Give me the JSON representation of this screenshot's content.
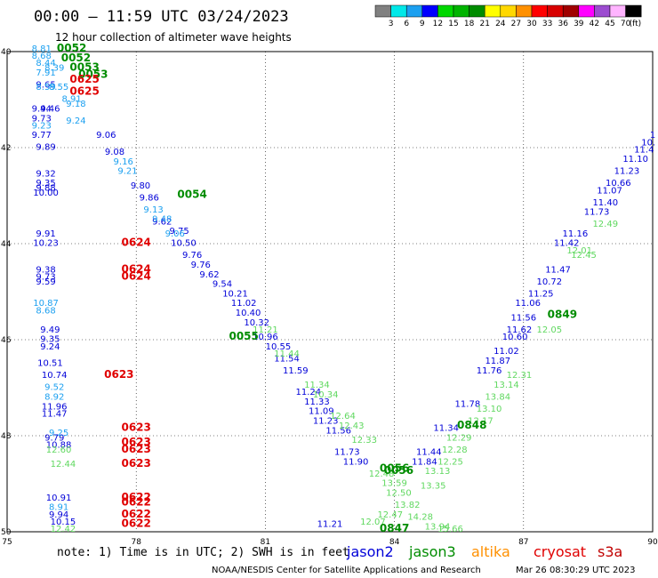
{
  "header": {
    "title": "00:00 – 11:59 UTC 03/24/2023",
    "subtitle": "12 hour collection of altimeter wave heights"
  },
  "colorbar": {
    "colors": [
      "#808080",
      "#00e8e8",
      "#1ca0f0",
      "#0000ff",
      "#00d800",
      "#00b400",
      "#008c00",
      "#ffff00",
      "#ffd800",
      "#ff9000",
      "#ff0000",
      "#d80000",
      "#a00000",
      "#ff00ff",
      "#9c4cd0",
      "#ffb4ff",
      "#000000"
    ],
    "labels": [
      "3",
      "6",
      "9",
      "12",
      "15",
      "18",
      "21",
      "24",
      "27",
      "30",
      "33",
      "36",
      "39",
      "42",
      "45",
      "70"
    ],
    "unit": "(ft)"
  },
  "note": "note: 1) Time is in UTC; 2) SWH is in feet",
  "satellites": [
    {
      "name": "jason2",
      "color": "#0000d8"
    },
    {
      "name": "jason3",
      "color": "#008c00"
    },
    {
      "name": "altika",
      "color": "#ff9000"
    },
    {
      "name": "cryosat",
      "color": "#e00000"
    },
    {
      "name": "s3a",
      "color": "#c00000"
    }
  ],
  "credit": "NOAA/NESDIS Center for Satellite Applications and Research",
  "timestamp": "Mar 26 08:30:29 UTC 2023",
  "chart_data": {
    "type": "scatter",
    "xlim": [
      75,
      90
    ],
    "ylim": [
      40,
      50
    ],
    "y_inverted": true,
    "xticks": [
      75,
      78,
      81,
      84,
      87,
      90
    ],
    "yticks": [
      40,
      42,
      44,
      46,
      48,
      50
    ],
    "series": [
      {
        "name": "jason2",
        "color": "#0000d8",
        "points": [
          {
            "x": 75.9,
            "y": 40.75,
            "label": "9.65"
          },
          {
            "x": 76.0,
            "y": 41.25,
            "label": "9.46"
          },
          {
            "x": 75.8,
            "y": 41.25,
            "label": "9.44"
          },
          {
            "x": 75.8,
            "y": 41.45,
            "label": "9.73"
          },
          {
            "x": 75.8,
            "y": 41.8,
            "label": "9.77"
          },
          {
            "x": 75.9,
            "y": 42.05,
            "label": "9.89"
          },
          {
            "x": 77.3,
            "y": 41.8,
            "label": "9.06"
          },
          {
            "x": 77.5,
            "y": 42.15,
            "label": "9.08"
          },
          {
            "x": 75.9,
            "y": 42.6,
            "label": "9.32"
          },
          {
            "x": 75.9,
            "y": 42.8,
            "label": "9.35"
          },
          {
            "x": 75.9,
            "y": 42.9,
            "label": "9.88"
          },
          {
            "x": 75.9,
            "y": 43.0,
            "label": "10.00"
          },
          {
            "x": 78.1,
            "y": 42.85,
            "label": "9.80"
          },
          {
            "x": 78.3,
            "y": 43.1,
            "label": "9.86"
          },
          {
            "x": 78.6,
            "y": 43.6,
            "label": "9.62"
          },
          {
            "x": 79.0,
            "y": 43.8,
            "label": "9.75"
          },
          {
            "x": 79.1,
            "y": 44.05,
            "label": "10.50"
          },
          {
            "x": 79.3,
            "y": 44.3,
            "label": "9.76"
          },
          {
            "x": 79.5,
            "y": 44.5,
            "label": "9.76"
          },
          {
            "x": 79.7,
            "y": 44.7,
            "label": "9.62"
          },
          {
            "x": 80.0,
            "y": 44.9,
            "label": "9.54"
          },
          {
            "x": 80.3,
            "y": 45.1,
            "label": "10.21"
          },
          {
            "x": 80.5,
            "y": 45.3,
            "label": "11.02"
          },
          {
            "x": 80.6,
            "y": 45.5,
            "label": "10.40"
          },
          {
            "x": 80.8,
            "y": 45.7,
            "label": "10.32"
          },
          {
            "x": 75.9,
            "y": 43.85,
            "label": "9.91"
          },
          {
            "x": 75.9,
            "y": 44.05,
            "label": "10.23"
          },
          {
            "x": 75.9,
            "y": 44.6,
            "label": "9.38"
          },
          {
            "x": 75.9,
            "y": 44.75,
            "label": "9.73"
          },
          {
            "x": 75.9,
            "y": 44.85,
            "label": "9.59"
          },
          {
            "x": 76.0,
            "y": 45.85,
            "label": "9.49"
          },
          {
            "x": 76.0,
            "y": 46.05,
            "label": "9.35"
          },
          {
            "x": 76.0,
            "y": 46.2,
            "label": "9.24"
          },
          {
            "x": 76.0,
            "y": 46.55,
            "label": "10.51"
          },
          {
            "x": 76.1,
            "y": 46.8,
            "label": "10.74"
          },
          {
            "x": 76.1,
            "y": 47.45,
            "label": "11.96"
          },
          {
            "x": 76.1,
            "y": 47.6,
            "label": "11.47"
          },
          {
            "x": 76.1,
            "y": 48.1,
            "label": "9.79"
          },
          {
            "x": 76.2,
            "y": 48.25,
            "label": "10.88"
          },
          {
            "x": 76.2,
            "y": 49.35,
            "label": "10.91"
          },
          {
            "x": 76.2,
            "y": 49.7,
            "label": "9.94"
          },
          {
            "x": 76.3,
            "y": 49.85,
            "label": "10.15"
          },
          {
            "x": 81.0,
            "y": 46.0,
            "label": "10.96"
          },
          {
            "x": 81.3,
            "y": 46.2,
            "label": "10.55"
          },
          {
            "x": 81.5,
            "y": 46.45,
            "label": "11.54"
          },
          {
            "x": 81.7,
            "y": 46.7,
            "label": "11.59"
          },
          {
            "x": 82.0,
            "y": 47.15,
            "label": "11.24"
          },
          {
            "x": 82.2,
            "y": 47.35,
            "label": "11.33"
          },
          {
            "x": 82.3,
            "y": 47.55,
            "label": "11.09"
          },
          {
            "x": 82.4,
            "y": 47.75,
            "label": "11.23"
          },
          {
            "x": 82.7,
            "y": 47.95,
            "label": "11.56"
          },
          {
            "x": 82.9,
            "y": 48.4,
            "label": "11.73"
          },
          {
            "x": 83.1,
            "y": 48.6,
            "label": "11.90"
          },
          {
            "x": 82.5,
            "y": 49.9,
            "label": "11.21"
          },
          {
            "x": 84.7,
            "y": 48.6,
            "label": "11.84"
          },
          {
            "x": 84.8,
            "y": 48.4,
            "label": "11.44"
          },
          {
            "x": 85.2,
            "y": 47.9,
            "label": "11.34"
          },
          {
            "x": 85.7,
            "y": 47.4,
            "label": "11.78"
          },
          {
            "x": 86.2,
            "y": 46.7,
            "label": "11.76"
          },
          {
            "x": 86.4,
            "y": 46.5,
            "label": "11.87"
          },
          {
            "x": 86.6,
            "y": 46.3,
            "label": "11.02"
          },
          {
            "x": 86.8,
            "y": 46.0,
            "label": "10.60"
          },
          {
            "x": 86.9,
            "y": 45.85,
            "label": "11.62"
          },
          {
            "x": 87.0,
            "y": 45.6,
            "label": "11.56"
          },
          {
            "x": 87.1,
            "y": 45.3,
            "label": "11.06"
          },
          {
            "x": 87.4,
            "y": 45.1,
            "label": "11.25"
          },
          {
            "x": 87.6,
            "y": 44.85,
            "label": "10.72"
          },
          {
            "x": 87.8,
            "y": 44.6,
            "label": "11.47"
          },
          {
            "x": 88.0,
            "y": 44.05,
            "label": "11.42"
          },
          {
            "x": 88.2,
            "y": 43.85,
            "label": "11.16"
          },
          {
            "x": 88.7,
            "y": 43.4,
            "label": "11.73"
          },
          {
            "x": 88.9,
            "y": 43.2,
            "label": "11.40"
          },
          {
            "x": 89.0,
            "y": 42.95,
            "label": "11.07"
          },
          {
            "x": 89.2,
            "y": 42.8,
            "label": "10.66"
          },
          {
            "x": 89.4,
            "y": 42.55,
            "label": "11.23"
          },
          {
            "x": 89.6,
            "y": 42.3,
            "label": "11.10"
          },
          {
            "x": 89.8,
            "y": 42.1,
            "label": "11.4"
          },
          {
            "x": 89.9,
            "y": 41.95,
            "label": "10."
          },
          {
            "x": 90.0,
            "y": 41.8,
            "label": "1"
          }
        ]
      },
      {
        "name": "jason2-light",
        "color": "#1ca0f0",
        "points": [
          {
            "x": 75.8,
            "y": 40.0,
            "label": "8.81"
          },
          {
            "x": 75.8,
            "y": 40.15,
            "label": "8.68"
          },
          {
            "x": 75.9,
            "y": 40.3,
            "label": "8.44"
          },
          {
            "x": 75.9,
            "y": 40.5,
            "label": "7.91"
          },
          {
            "x": 76.1,
            "y": 40.4,
            "label": "8.39"
          },
          {
            "x": 75.9,
            "y": 40.8,
            "label": "8.59"
          },
          {
            "x": 76.2,
            "y": 40.8,
            "label": "8.55"
          },
          {
            "x": 76.5,
            "y": 41.05,
            "label": "8.91"
          },
          {
            "x": 76.6,
            "y": 41.15,
            "label": "9.18"
          },
          {
            "x": 76.6,
            "y": 41.5,
            "label": "9.24"
          },
          {
            "x": 75.8,
            "y": 41.6,
            "label": "9.23"
          },
          {
            "x": 77.7,
            "y": 42.35,
            "label": "9.16"
          },
          {
            "x": 77.8,
            "y": 42.55,
            "label": "9.21"
          },
          {
            "x": 78.4,
            "y": 43.35,
            "label": "9.13"
          },
          {
            "x": 78.6,
            "y": 43.55,
            "label": "9.48"
          },
          {
            "x": 78.9,
            "y": 43.85,
            "label": "9.06"
          },
          {
            "x": 75.9,
            "y": 45.3,
            "label": "10.87"
          },
          {
            "x": 75.9,
            "y": 45.45,
            "label": "8.68"
          },
          {
            "x": 76.1,
            "y": 47.05,
            "label": "9.52"
          },
          {
            "x": 76.1,
            "y": 47.25,
            "label": "8.92"
          },
          {
            "x": 76.2,
            "y": 48.0,
            "label": "9.25"
          },
          {
            "x": 76.2,
            "y": 49.55,
            "label": "8.91"
          }
        ]
      },
      {
        "name": "jason3",
        "color": "#60d860",
        "points": [
          {
            "x": 81.0,
            "y": 45.85,
            "label": "11.21"
          },
          {
            "x": 81.5,
            "y": 46.35,
            "label": "11.44"
          },
          {
            "x": 82.2,
            "y": 47.0,
            "label": "11.34"
          },
          {
            "x": 82.4,
            "y": 47.2,
            "label": "10.34"
          },
          {
            "x": 82.8,
            "y": 47.65,
            "label": "12.64"
          },
          {
            "x": 83.0,
            "y": 47.85,
            "label": "12.43"
          },
          {
            "x": 83.3,
            "y": 48.15,
            "label": "12.33"
          },
          {
            "x": 83.7,
            "y": 48.85,
            "label": "12.48"
          },
          {
            "x": 84.0,
            "y": 49.05,
            "label": "13.59"
          },
          {
            "x": 84.1,
            "y": 49.25,
            "label": "12.50"
          },
          {
            "x": 84.3,
            "y": 49.5,
            "label": "13.82"
          },
          {
            "x": 84.6,
            "y": 49.75,
            "label": "14.28"
          },
          {
            "x": 83.9,
            "y": 49.7,
            "label": "12.47"
          },
          {
            "x": 83.5,
            "y": 49.85,
            "label": "12.07"
          },
          {
            "x": 85.0,
            "y": 49.95,
            "label": "13.94"
          },
          {
            "x": 85.3,
            "y": 50.0,
            "label": "15.66"
          },
          {
            "x": 84.9,
            "y": 49.1,
            "label": "13.35"
          },
          {
            "x": 85.0,
            "y": 48.8,
            "label": "13.13"
          },
          {
            "x": 85.3,
            "y": 48.6,
            "label": "12.25"
          },
          {
            "x": 85.4,
            "y": 48.35,
            "label": "12.28"
          },
          {
            "x": 85.5,
            "y": 48.1,
            "label": "12.29"
          },
          {
            "x": 86.0,
            "y": 47.75,
            "label": "12.17"
          },
          {
            "x": 86.2,
            "y": 47.5,
            "label": "13.10"
          },
          {
            "x": 86.4,
            "y": 47.25,
            "label": "13.84"
          },
          {
            "x": 86.6,
            "y": 47.0,
            "label": "13.14"
          },
          {
            "x": 86.9,
            "y": 46.8,
            "label": "12.31"
          },
          {
            "x": 87.6,
            "y": 45.85,
            "label": "12.05"
          },
          {
            "x": 88.4,
            "y": 44.3,
            "label": "12.45"
          },
          {
            "x": 88.3,
            "y": 44.2,
            "label": "12.01"
          },
          {
            "x": 88.9,
            "y": 43.65,
            "label": "12.49"
          },
          {
            "x": 76.2,
            "y": 48.35,
            "label": "12.60"
          },
          {
            "x": 76.3,
            "y": 48.65,
            "label": "12.44"
          },
          {
            "x": 76.3,
            "y": 50.0,
            "label": "12.42"
          }
        ]
      }
    ],
    "time_labels": [
      {
        "x": 76.5,
        "y": 40.0,
        "label": "0052",
        "color": "#008c00"
      },
      {
        "x": 76.6,
        "y": 40.2,
        "label": "0052",
        "color": "#008c00"
      },
      {
        "x": 76.8,
        "y": 40.4,
        "label": "0053",
        "color": "#008c00"
      },
      {
        "x": 77.0,
        "y": 40.55,
        "label": "0053",
        "color": "#008c00"
      },
      {
        "x": 76.8,
        "y": 40.65,
        "label": "0625",
        "color": "#e00000"
      },
      {
        "x": 76.8,
        "y": 40.9,
        "label": "0625",
        "color": "#e00000"
      },
      {
        "x": 79.3,
        "y": 43.05,
        "label": "0054",
        "color": "#008c00"
      },
      {
        "x": 80.5,
        "y": 46.0,
        "label": "0055",
        "color": "#008c00"
      },
      {
        "x": 78.0,
        "y": 44.05,
        "label": "0624",
        "color": "#e00000"
      },
      {
        "x": 78.0,
        "y": 44.6,
        "label": "0624",
        "color": "#e00000"
      },
      {
        "x": 78.0,
        "y": 44.75,
        "label": "0624",
        "color": "#e00000"
      },
      {
        "x": 77.6,
        "y": 46.8,
        "label": "0623",
        "color": "#e00000"
      },
      {
        "x": 78.0,
        "y": 47.9,
        "label": "0623",
        "color": "#e00000"
      },
      {
        "x": 78.0,
        "y": 48.2,
        "label": "0623",
        "color": "#e00000"
      },
      {
        "x": 78.0,
        "y": 48.35,
        "label": "0623",
        "color": "#e00000"
      },
      {
        "x": 78.0,
        "y": 48.65,
        "label": "0623",
        "color": "#e00000"
      },
      {
        "x": 78.0,
        "y": 49.35,
        "label": "0622",
        "color": "#e00000"
      },
      {
        "x": 78.0,
        "y": 49.45,
        "label": "0622",
        "color": "#e00000"
      },
      {
        "x": 78.0,
        "y": 49.7,
        "label": "0622",
        "color": "#e00000"
      },
      {
        "x": 78.0,
        "y": 49.9,
        "label": "0622",
        "color": "#e00000"
      },
      {
        "x": 84.0,
        "y": 48.75,
        "label": "0056",
        "color": "#008c00"
      },
      {
        "x": 84.1,
        "y": 48.8,
        "label": "0056",
        "color": "#008c00"
      },
      {
        "x": 85.8,
        "y": 47.85,
        "label": "0848",
        "color": "#008c00"
      },
      {
        "x": 87.9,
        "y": 45.55,
        "label": "0849",
        "color": "#008c00"
      },
      {
        "x": 84.0,
        "y": 50.0,
        "label": "0847",
        "color": "#008c00"
      }
    ]
  }
}
